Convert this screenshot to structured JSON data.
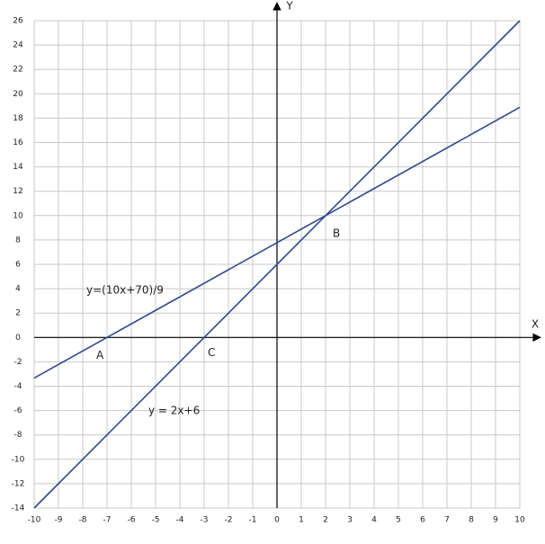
{
  "chart_data": {
    "type": "line",
    "x_label": "X",
    "y_label": "Y",
    "x": [
      -10,
      10
    ],
    "series": [
      {
        "name": "y = 2x+6",
        "color": "#2d4a8c",
        "values": [
          -14,
          26
        ]
      },
      {
        "name": "y=(10x+70)/9",
        "color": "#2d4a8c",
        "values": [
          -3.33,
          18.89
        ]
      }
    ],
    "points": [
      {
        "label": "A",
        "x": -7,
        "y": 0
      },
      {
        "label": "B",
        "x": 2,
        "y": 10
      },
      {
        "label": "C",
        "x": -3,
        "y": 0
      }
    ],
    "xlim": [
      -10,
      10
    ],
    "ylim": [
      -14,
      26
    ],
    "xticks": [
      -10,
      -9,
      -8,
      -7,
      -6,
      -5,
      -4,
      -3,
      -2,
      -1,
      0,
      1,
      2,
      3,
      4,
      5,
      6,
      7,
      8,
      9,
      10
    ],
    "yticks": [
      -14,
      -12,
      -10,
      -8,
      -6,
      -4,
      -2,
      0,
      2,
      4,
      6,
      8,
      10,
      12,
      14,
      16,
      18,
      20,
      22,
      24,
      26
    ],
    "grid": true
  }
}
